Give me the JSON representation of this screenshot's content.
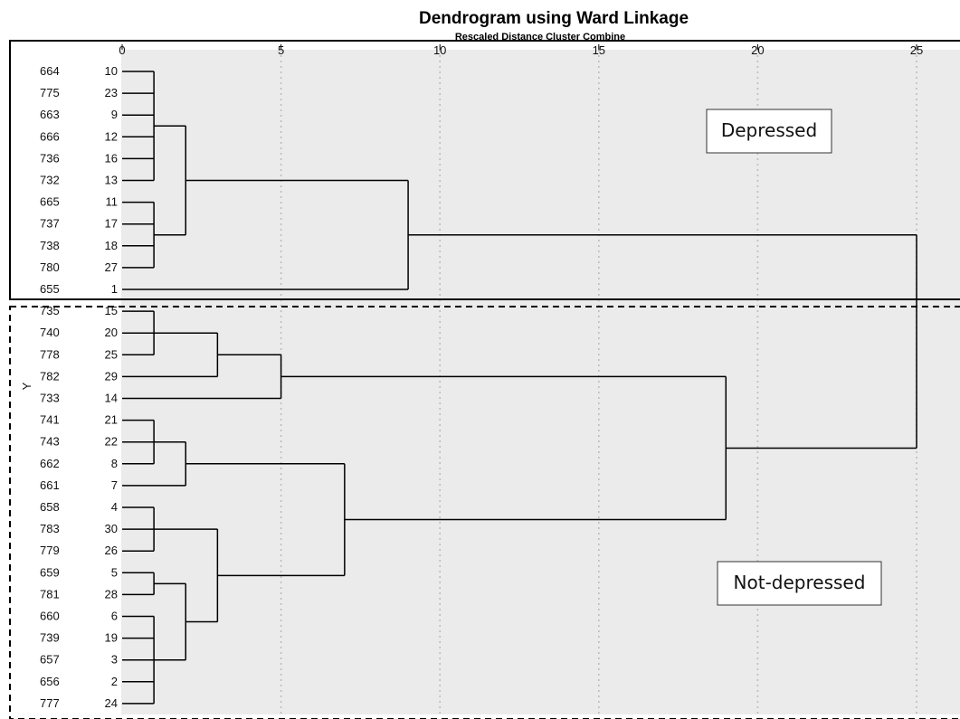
{
  "chart_data": {
    "type": "dendrogram",
    "title": "Dendrogram using Ward Linkage",
    "subtitle": "Rescaled Distance Cluster Combine",
    "y_axis_label": "Y",
    "xlim": [
      0,
      25
    ],
    "x_ticks": [
      0,
      5,
      10,
      15,
      20,
      25
    ],
    "grid": "vertical dotted",
    "leaves": [
      {
        "label": "664",
        "case": "10"
      },
      {
        "label": "775",
        "case": "23"
      },
      {
        "label": "663",
        "case": "9"
      },
      {
        "label": "666",
        "case": "12"
      },
      {
        "label": "736",
        "case": "16"
      },
      {
        "label": "732",
        "case": "13"
      },
      {
        "label": "665",
        "case": "11"
      },
      {
        "label": "737",
        "case": "17"
      },
      {
        "label": "738",
        "case": "18"
      },
      {
        "label": "780",
        "case": "27"
      },
      {
        "label": "655",
        "case": "1"
      },
      {
        "label": "735",
        "case": "15"
      },
      {
        "label": "740",
        "case": "20"
      },
      {
        "label": "778",
        "case": "25"
      },
      {
        "label": "782",
        "case": "29"
      },
      {
        "label": "733",
        "case": "14"
      },
      {
        "label": "741",
        "case": "21"
      },
      {
        "label": "743",
        "case": "22"
      },
      {
        "label": "662",
        "case": "8"
      },
      {
        "label": "661",
        "case": "7"
      },
      {
        "label": "658",
        "case": "4"
      },
      {
        "label": "783",
        "case": "30"
      },
      {
        "label": "779",
        "case": "26"
      },
      {
        "label": "659",
        "case": "5"
      },
      {
        "label": "781",
        "case": "28"
      },
      {
        "label": "660",
        "case": "6"
      },
      {
        "label": "739",
        "case": "19"
      },
      {
        "label": "657",
        "case": "3"
      },
      {
        "label": "656",
        "case": "2"
      },
      {
        "label": "777",
        "case": "24"
      }
    ],
    "merges": [
      {
        "children": [
          0,
          1,
          2,
          3,
          4,
          5
        ],
        "height": 1
      },
      {
        "children": [
          6,
          7,
          8,
          9
        ],
        "height": 1
      },
      {
        "children": [
          30,
          31
        ],
        "height": 2
      },
      {
        "children": [
          32,
          10
        ],
        "height": 9
      },
      {
        "children": [
          11,
          12,
          13
        ],
        "height": 1
      },
      {
        "children": [
          34,
          14
        ],
        "height": 3
      },
      {
        "children": [
          35,
          15
        ],
        "height": 5
      },
      {
        "children": [
          16,
          17,
          18
        ],
        "height": 1
      },
      {
        "children": [
          37,
          19
        ],
        "height": 2
      },
      {
        "children": [
          20,
          21,
          22
        ],
        "height": 1
      },
      {
        "children": [
          23,
          24
        ],
        "height": 1
      },
      {
        "children": [
          25,
          26,
          27,
          28,
          29
        ],
        "height": 1
      },
      {
        "children": [
          40,
          41
        ],
        "height": 2
      },
      {
        "children": [
          39,
          42
        ],
        "height": 3
      },
      {
        "children": [
          38,
          43
        ],
        "height": 7
      },
      {
        "children": [
          36,
          44
        ],
        "height": 19
      },
      {
        "children": [
          33,
          45
        ],
        "height": 25
      }
    ],
    "groups": [
      {
        "label": "Depressed",
        "from_leaf": 0,
        "to_leaf": 10,
        "border": "solid"
      },
      {
        "label": "Not-depressed",
        "from_leaf": 11,
        "to_leaf": 29,
        "border": "dashed"
      }
    ],
    "colors": {
      "background": "#ebebeb",
      "line": "#000000",
      "grid": "#bdbdbd"
    }
  }
}
